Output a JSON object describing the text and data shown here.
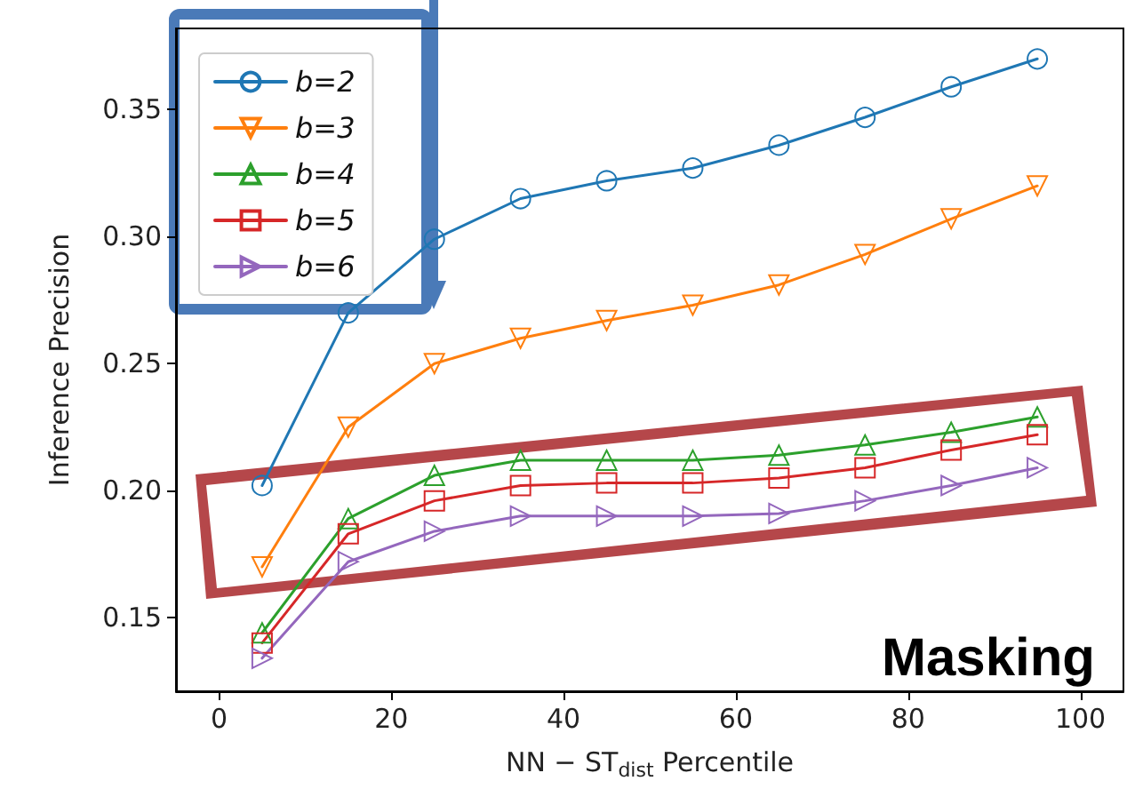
{
  "chart_data": {
    "type": "line",
    "xlabel": "NN − ST$_{dist}$ Percentile",
    "ylabel": "Inference Precision",
    "x": [
      5,
      15,
      25,
      35,
      45,
      55,
      65,
      75,
      85,
      95
    ],
    "series": [
      {
        "name": "b=2",
        "color": "#1f77b4",
        "marker": "circle",
        "values": [
          0.202,
          0.27,
          0.299,
          0.315,
          0.322,
          0.327,
          0.336,
          0.347,
          0.359,
          0.37
        ]
      },
      {
        "name": "b=3",
        "color": "#ff7f0e",
        "marker": "triangle-down",
        "values": [
          0.17,
          0.225,
          0.25,
          0.26,
          0.267,
          0.273,
          0.281,
          0.293,
          0.307,
          0.32
        ]
      },
      {
        "name": "b=4",
        "color": "#2ca02c",
        "marker": "triangle",
        "values": [
          0.144,
          0.189,
          0.206,
          0.212,
          0.212,
          0.212,
          0.214,
          0.218,
          0.223,
          0.229
        ]
      },
      {
        "name": "b=5",
        "color": "#d62728",
        "marker": "square",
        "values": [
          0.14,
          0.183,
          0.196,
          0.202,
          0.203,
          0.203,
          0.205,
          0.209,
          0.216,
          0.222
        ]
      },
      {
        "name": "b=6",
        "color": "#9467bd",
        "marker": "triangle-right",
        "values": [
          0.134,
          0.172,
          0.184,
          0.19,
          0.19,
          0.19,
          0.191,
          0.196,
          0.202,
          0.209
        ]
      }
    ],
    "xlim": [
      -5,
      105
    ],
    "xticks": [
      0,
      20,
      40,
      60,
      80,
      100
    ],
    "ylim": [
      0.121,
      0.382
    ],
    "yticks": [
      0.15,
      {
        "value": 0.2,
        "label": "0.20"
      },
      0.25,
      {
        "value": 0.3,
        "label": "0.30"
      },
      0.35
    ],
    "legend": "top left",
    "grid": false,
    "line_style": "solid",
    "annotations": [
      "Masking"
    ]
  }
}
